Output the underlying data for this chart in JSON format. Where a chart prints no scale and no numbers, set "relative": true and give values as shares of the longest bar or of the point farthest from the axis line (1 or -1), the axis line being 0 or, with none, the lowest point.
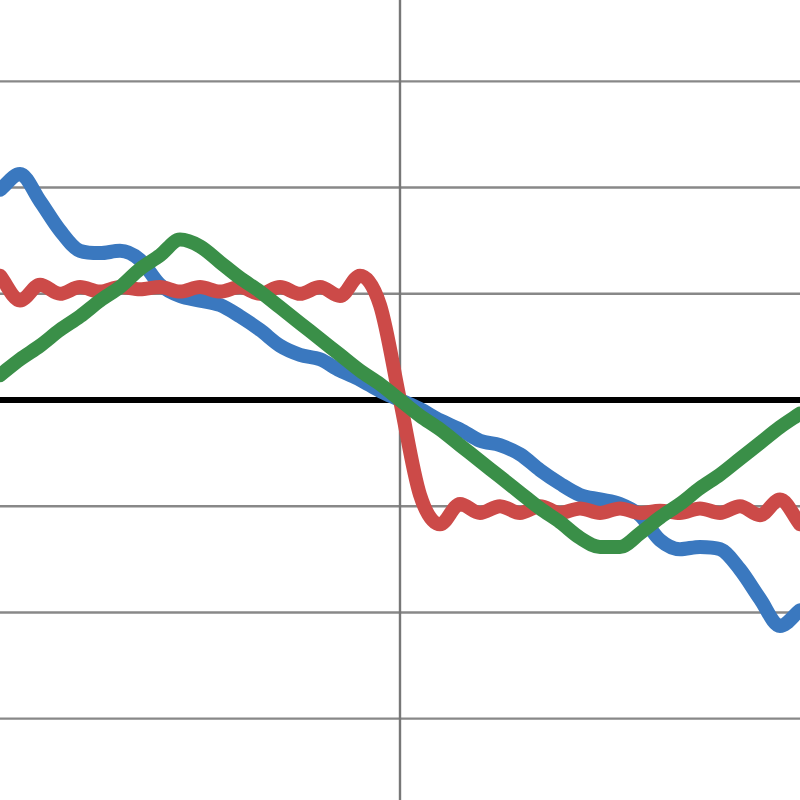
{
  "chart_data": {
    "type": "line",
    "relative": true,
    "grid": "y",
    "legend": false,
    "marker": "none",
    "line_style": "solid",
    "categories": [
      null,
      null,
      null,
      null,
      null,
      null,
      null,
      null,
      null,
      null,
      null,
      null,
      null,
      null,
      null,
      null,
      null,
      null,
      null,
      null,
      null,
      null,
      null,
      null,
      null,
      null,
      null,
      null,
      null,
      null,
      null,
      null,
      null,
      null,
      null,
      null,
      null,
      null,
      null,
      null,
      null
    ],
    "series": [
      {
        "color": "#3a78bf",
        "values": [
          0.93,
          1,
          0.88,
          0.75,
          0.66,
          0.65,
          0.66,
          0.62,
          0.51,
          0.46,
          0.44,
          0.42,
          0.37,
          0.31,
          0.24,
          0.2,
          0.18,
          0.13,
          0.09,
          0.04,
          0,
          -0.04,
          -0.09,
          -0.13,
          -0.18,
          -0.2,
          -0.24,
          -0.31,
          -0.37,
          -0.42,
          -0.44,
          -0.46,
          -0.51,
          -0.62,
          -0.66,
          -0.65,
          -0.66,
          -0.75,
          -0.88,
          -1,
          -0.93
        ]
      },
      {
        "color": "#cc4a48",
        "values": [
          0.55,
          0.44,
          0.51,
          0.47,
          0.5,
          0.48,
          0.5,
          0.49,
          0.5,
          0.48,
          0.5,
          0.48,
          0.5,
          0.47,
          0.5,
          0.47,
          0.5,
          0.46,
          0.55,
          0.42,
          0,
          -0.42,
          -0.55,
          -0.46,
          -0.5,
          -0.47,
          -0.5,
          -0.47,
          -0.5,
          -0.48,
          -0.5,
          -0.48,
          -0.5,
          -0.49,
          -0.5,
          -0.48,
          -0.5,
          -0.47,
          -0.51,
          -0.44,
          -0.55
        ]
      },
      {
        "color": "#3a8f48",
        "values": [
          0.11,
          0.18,
          0.24,
          0.31,
          0.37,
          0.44,
          0.5,
          0.58,
          0.64,
          0.71,
          0.68,
          0.61,
          0.54,
          0.48,
          0.41,
          0.34,
          0.27,
          0.2,
          0.13,
          0.07,
          0,
          -0.07,
          -0.13,
          -0.2,
          -0.27,
          -0.34,
          -0.41,
          -0.48,
          -0.54,
          -0.61,
          -0.65,
          -0.65,
          -0.59,
          -0.52,
          -0.46,
          -0.39,
          -0.33,
          -0.26,
          -0.19,
          -0.12,
          -0.06
        ]
      }
    ]
  }
}
